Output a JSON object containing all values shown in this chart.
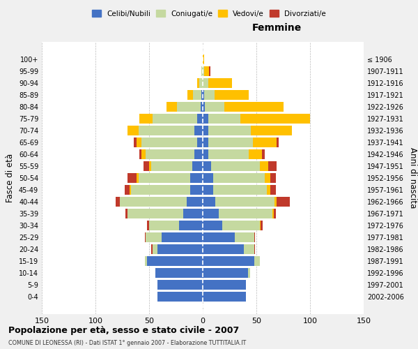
{
  "age_groups": [
    "0-4",
    "5-9",
    "10-14",
    "15-19",
    "20-24",
    "25-29",
    "30-34",
    "35-39",
    "40-44",
    "45-49",
    "50-54",
    "55-59",
    "60-64",
    "65-69",
    "70-74",
    "75-79",
    "80-84",
    "85-89",
    "90-94",
    "95-99",
    "100+"
  ],
  "birth_years": [
    "2002-2006",
    "1997-2001",
    "1992-1996",
    "1987-1991",
    "1982-1986",
    "1977-1981",
    "1972-1976",
    "1967-1971",
    "1962-1966",
    "1957-1961",
    "1952-1956",
    "1947-1951",
    "1942-1946",
    "1937-1941",
    "1932-1936",
    "1927-1931",
    "1922-1926",
    "1917-1921",
    "1912-1916",
    "1907-1911",
    "≤ 1906"
  ],
  "male_celibi": [
    42,
    42,
    44,
    52,
    42,
    38,
    22,
    18,
    15,
    12,
    12,
    10,
    8,
    5,
    8,
    5,
    2,
    1,
    0,
    0,
    0
  ],
  "male_coniugati": [
    0,
    0,
    0,
    2,
    5,
    15,
    28,
    52,
    62,
    55,
    48,
    38,
    45,
    52,
    52,
    42,
    22,
    8,
    3,
    1,
    0
  ],
  "male_vedovi": [
    0,
    0,
    0,
    0,
    0,
    0,
    0,
    0,
    0,
    1,
    2,
    2,
    4,
    5,
    10,
    12,
    10,
    5,
    2,
    0,
    0
  ],
  "male_divorziati": [
    0,
    0,
    0,
    0,
    1,
    1,
    2,
    2,
    4,
    5,
    8,
    5,
    2,
    2,
    0,
    0,
    0,
    0,
    0,
    0,
    0
  ],
  "female_nubili": [
    40,
    40,
    42,
    48,
    38,
    30,
    18,
    15,
    12,
    10,
    10,
    8,
    5,
    5,
    5,
    5,
    2,
    1,
    0,
    0,
    0
  ],
  "female_coniugate": [
    0,
    0,
    2,
    5,
    10,
    18,
    35,
    50,
    55,
    50,
    48,
    45,
    38,
    42,
    40,
    30,
    18,
    10,
    5,
    1,
    0
  ],
  "female_vedove": [
    0,
    0,
    0,
    0,
    0,
    0,
    1,
    1,
    2,
    3,
    5,
    8,
    12,
    22,
    38,
    65,
    55,
    32,
    22,
    5,
    1
  ],
  "female_divorziate": [
    0,
    0,
    0,
    0,
    1,
    1,
    2,
    2,
    12,
    5,
    5,
    8,
    3,
    2,
    0,
    0,
    0,
    0,
    0,
    1,
    0
  ],
  "colors": {
    "celibi": "#4472c4",
    "coniugati": "#c5d9a0",
    "vedovi": "#ffc000",
    "divorziati": "#c0392b"
  },
  "xlim": 150,
  "title": "Popolazione per età, sesso e stato civile - 2007",
  "subtitle": "COMUNE DI LEONESSA (RI) - Dati ISTAT 1° gennaio 2007 - Elaborazione TUTTITALIA.IT",
  "xlabel_right": "Femmine",
  "ylabel_left": "Fasce di età",
  "ylabel_right": "Anni di nascita",
  "legend_labels": [
    "Celibi/Nubili",
    "Coniugati/e",
    "Vedovi/e",
    "Divorziati/e"
  ],
  "bg_color": "#f0f0f0",
  "plot_bg": "#ffffff"
}
